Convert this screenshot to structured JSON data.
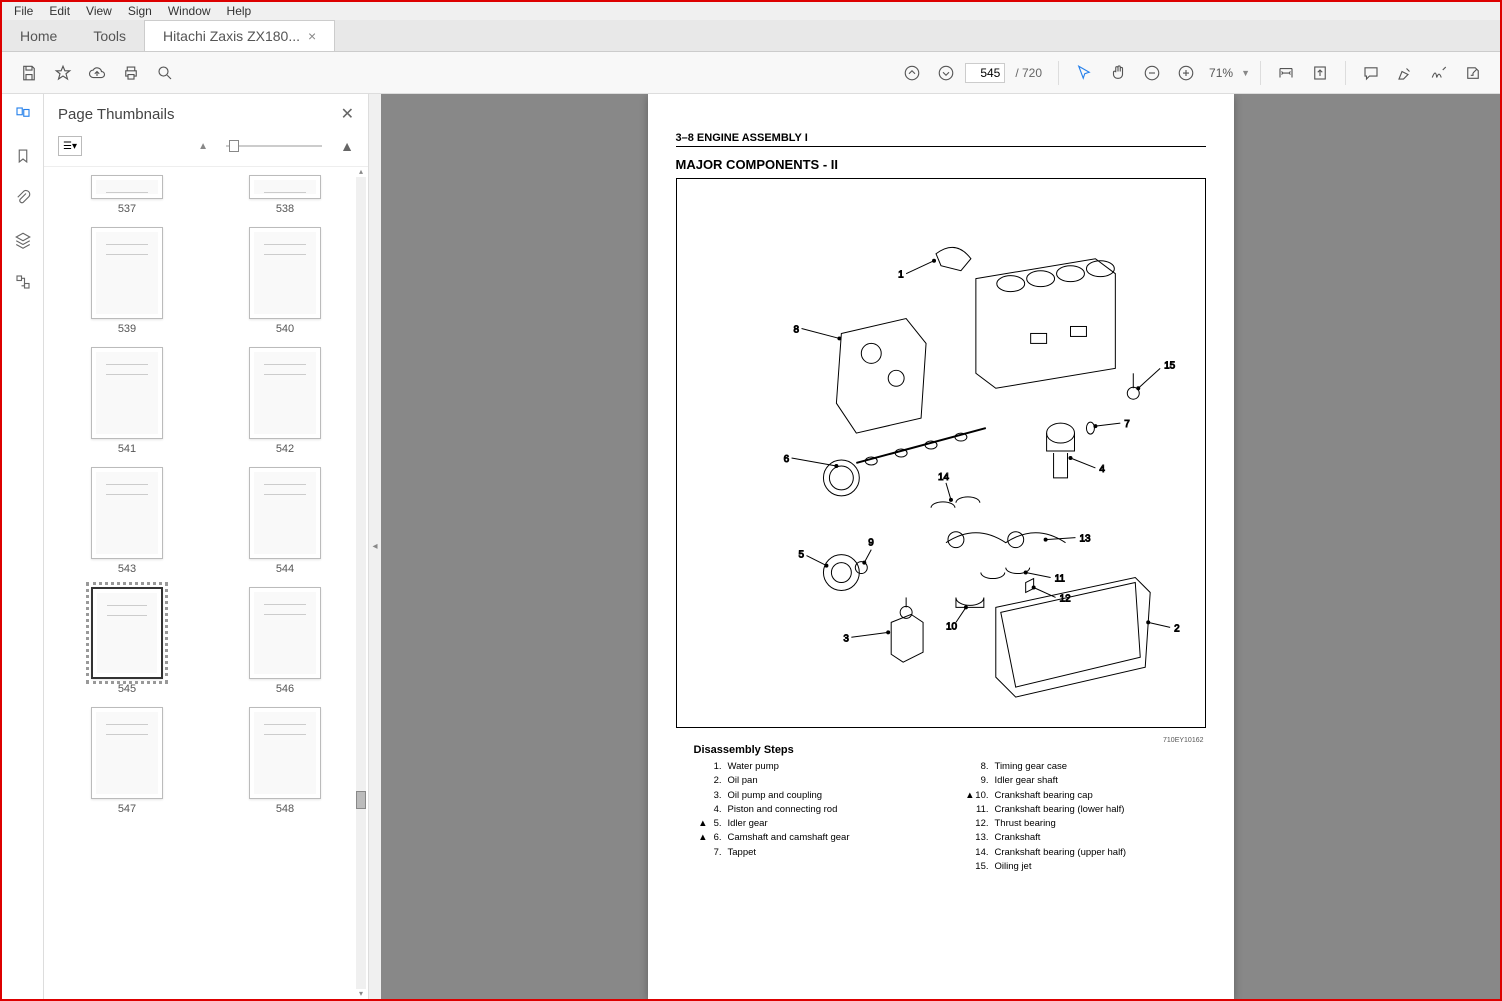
{
  "menu": {
    "file": "File",
    "edit": "Edit",
    "view": "View",
    "sign": "Sign",
    "window": "Window",
    "help": "Help"
  },
  "tabs": {
    "home": "Home",
    "tools": "Tools",
    "doc": "Hitachi Zaxis ZX180..."
  },
  "toolbar": {
    "current_page": "545",
    "total_pages": "/ 720",
    "zoom": "71%"
  },
  "thumbpanel": {
    "title": "Page Thumbnails",
    "pages": [
      "537",
      "538",
      "539",
      "540",
      "541",
      "542",
      "543",
      "544",
      "545",
      "546",
      "547",
      "548"
    ],
    "current": "545"
  },
  "document": {
    "section": "3–8  ENGINE ASSEMBLY  I",
    "title": "MAJOR COMPONENTS - II",
    "steps_title": "Disassembly Steps",
    "steps_left": [
      {
        "mark": "",
        "n": "1.",
        "t": "Water pump"
      },
      {
        "mark": "",
        "n": "2.",
        "t": "Oil pan"
      },
      {
        "mark": "",
        "n": "3.",
        "t": "Oil pump and coupling"
      },
      {
        "mark": "",
        "n": "4.",
        "t": "Piston and connecting rod"
      },
      {
        "mark": "▲",
        "n": "5.",
        "t": "Idler gear"
      },
      {
        "mark": "▲",
        "n": "6.",
        "t": "Camshaft and camshaft gear"
      },
      {
        "mark": "",
        "n": "7.",
        "t": "Tappet"
      }
    ],
    "steps_right": [
      {
        "mark": "",
        "n": "8.",
        "t": "Timing gear case"
      },
      {
        "mark": "",
        "n": "9.",
        "t": "Idler gear shaft"
      },
      {
        "mark": "▲",
        "n": "10.",
        "t": "Crankshaft bearing cap"
      },
      {
        "mark": "",
        "n": "11.",
        "t": "Crankshaft bearing (lower half)"
      },
      {
        "mark": "",
        "n": "12.",
        "t": "Thrust bearing"
      },
      {
        "mark": "",
        "n": "13.",
        "t": "Crankshaft"
      },
      {
        "mark": "",
        "n": "14.",
        "t": "Crankshaft bearing (upper half)"
      },
      {
        "mark": "",
        "n": "15.",
        "t": "Oiling jet"
      }
    ],
    "callouts": [
      "1",
      "2",
      "3",
      "4",
      "5",
      "6",
      "7",
      "8",
      "9",
      "10",
      "11",
      "12",
      "13",
      "14",
      "15"
    ],
    "fig_ref": "710EY10162"
  }
}
